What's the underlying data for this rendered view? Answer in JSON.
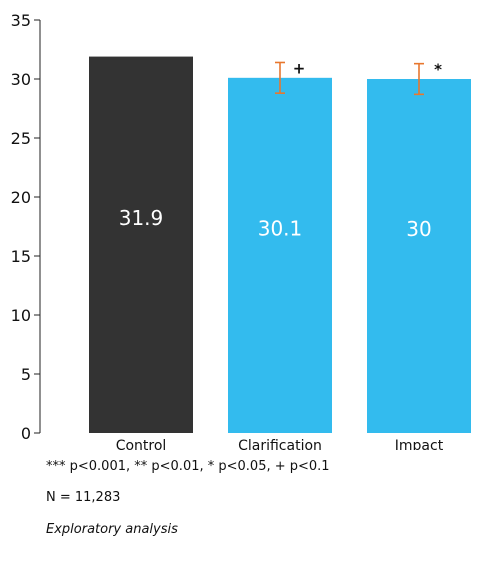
{
  "chart_data": {
    "type": "bar",
    "categories": [
      "Control",
      "Clarification",
      "Impact"
    ],
    "values": [
      31.9,
      30.1,
      30
    ],
    "value_labels": [
      "31.9",
      "30.1",
      "30"
    ],
    "error_bars": [
      null,
      [
        28.8,
        31.4
      ],
      [
        28.7,
        31.3
      ]
    ],
    "significance_markers": [
      "",
      "+",
      "*"
    ],
    "bar_colors": [
      "#333333",
      "#33bbee",
      "#33bbee"
    ],
    "errorbar_color": "#e8772e",
    "ylim": [
      0,
      35
    ],
    "yticks": [
      0,
      5,
      10,
      15,
      20,
      25,
      30,
      35
    ],
    "title": "",
    "xlabel": "",
    "ylabel": "",
    "grid": false,
    "legend": "none"
  },
  "notes": {
    "significance": "*** p<0.001, ** p<0.01, * p<0.05, + p<0.1",
    "n": "N = 11,283",
    "analysis": "Exploratory analysis"
  }
}
